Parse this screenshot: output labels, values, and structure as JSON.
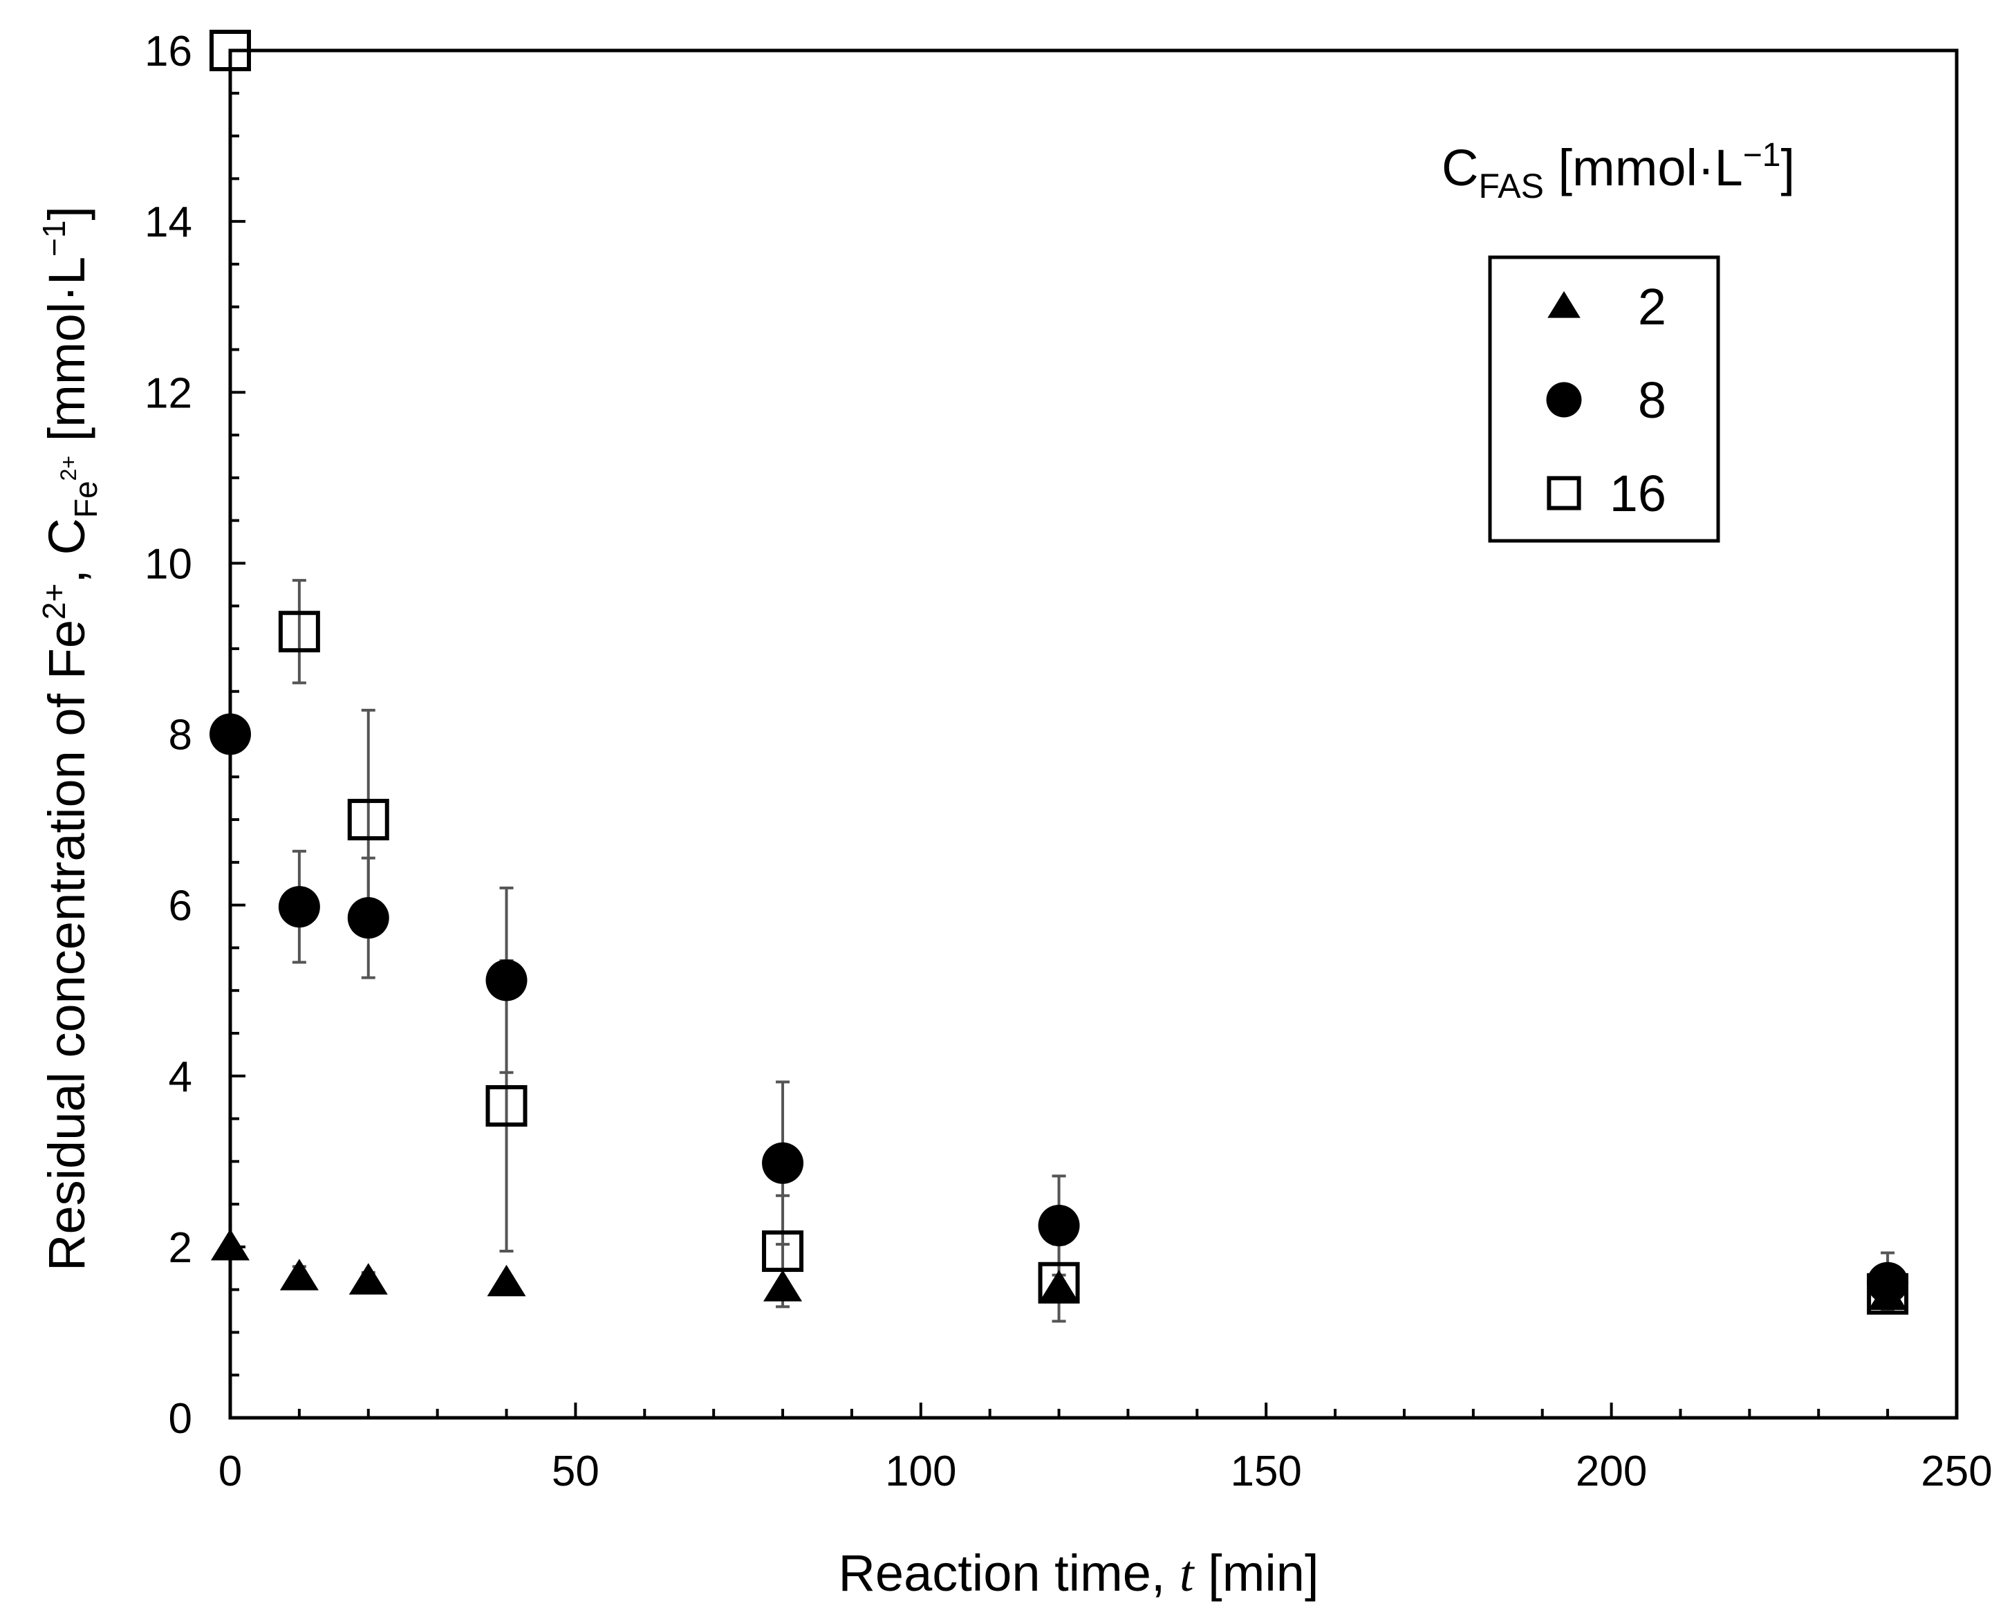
{
  "chart_data": {
    "type": "scatter",
    "title": "",
    "xlabel": {
      "prefix": "Reaction time, ",
      "var": "t",
      "suffix": " [min]"
    },
    "ylabel": {
      "main": "Residual concentration of  Fe",
      "sup": "2+",
      "mid": ",  C",
      "sub": "Fe",
      "subsup": "2+",
      "unit": "  [mmol·L",
      "unitsup": "−1",
      "end": "]"
    },
    "xlim": [
      0,
      250
    ],
    "ylim": [
      0,
      16
    ],
    "x_ticks": [
      0,
      50,
      100,
      150,
      200,
      250
    ],
    "y_ticks": [
      0,
      2,
      4,
      6,
      8,
      10,
      12,
      14,
      16
    ],
    "legend": {
      "title_main": "C",
      "title_sub": "FAS",
      "title_unit": " [mmol·L",
      "title_sup": "−1",
      "title_end": "]",
      "position": "top-right",
      "entries": [
        "2",
        "8",
        "16"
      ]
    },
    "series": [
      {
        "name": "2",
        "marker": "triangle",
        "points": [
          {
            "x": 0,
            "y": 2.0,
            "err": 0.05
          },
          {
            "x": 10,
            "y": 1.65,
            "err": 0.12
          },
          {
            "x": 20,
            "y": 1.6,
            "err": 0.1
          },
          {
            "x": 40,
            "y": 1.58,
            "err": 0.07
          },
          {
            "x": 80,
            "y": 1.52,
            "err": 0.07
          },
          {
            "x": 120,
            "y": 1.52,
            "err": 0.07
          },
          {
            "x": 240,
            "y": 1.42,
            "err": 0.07
          }
        ]
      },
      {
        "name": "8",
        "marker": "circle",
        "points": [
          {
            "x": 0,
            "y": 8.0,
            "err": 0.0
          },
          {
            "x": 10,
            "y": 5.98,
            "err": 0.65
          },
          {
            "x": 20,
            "y": 5.85,
            "err": 0.7
          },
          {
            "x": 40,
            "y": 5.12,
            "err": 1.08
          },
          {
            "x": 80,
            "y": 2.98,
            "err": 0.95
          },
          {
            "x": 120,
            "y": 2.25,
            "err": 0.58
          },
          {
            "x": 240,
            "y": 1.58,
            "err": 0.35
          }
        ]
      },
      {
        "name": "16",
        "marker": "open-square",
        "points": [
          {
            "x": 0,
            "y": 16.0,
            "err": 0.0
          },
          {
            "x": 10,
            "y": 9.2,
            "err": 0.6
          },
          {
            "x": 20,
            "y": 7.0,
            "err": 1.28
          },
          {
            "x": 40,
            "y": 3.65,
            "err": 1.7
          },
          {
            "x": 80,
            "y": 1.95,
            "err": 0.65
          },
          {
            "x": 120,
            "y": 1.58,
            "err": 0.45
          },
          {
            "x": 240,
            "y": 1.45,
            "err": 0.2
          }
        ]
      }
    ]
  }
}
